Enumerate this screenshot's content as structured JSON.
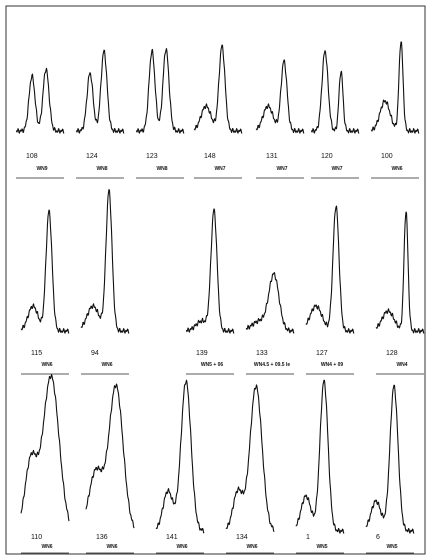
{
  "rows": [
    {
      "panels": [
        {
          "number": "108",
          "code": "WN9"
        },
        {
          "number": "124",
          "code": "WN8"
        },
        {
          "number": "123",
          "code": "WN8"
        },
        {
          "number": "148",
          "code": "WN7"
        },
        {
          "number": "131",
          "code": "WN7"
        },
        {
          "number": "120",
          "code": "WN7"
        },
        {
          "number": "100",
          "code": "WN6"
        }
      ]
    },
    {
      "panels": [
        {
          "number": "115",
          "code": "WN6"
        },
        {
          "number": "94",
          "code": "WN6"
        },
        {
          "number": "139",
          "code": "WN5 + 06"
        },
        {
          "number": "133",
          "code": "WN4.5 + 09.5 Ie"
        },
        {
          "number": "127",
          "code": "WN4 + 09"
        },
        {
          "number": "128",
          "code": "WN4"
        }
      ]
    },
    {
      "panels": [
        {
          "number": "110",
          "code": "WN6"
        },
        {
          "number": "136",
          "code": "WN6"
        },
        {
          "number": "141",
          "code": "WN6"
        },
        {
          "number": "134",
          "code": "WN6"
        },
        {
          "number": "1",
          "code": "WN5"
        },
        {
          "number": "6",
          "code": "WN5"
        }
      ]
    }
  ]
}
